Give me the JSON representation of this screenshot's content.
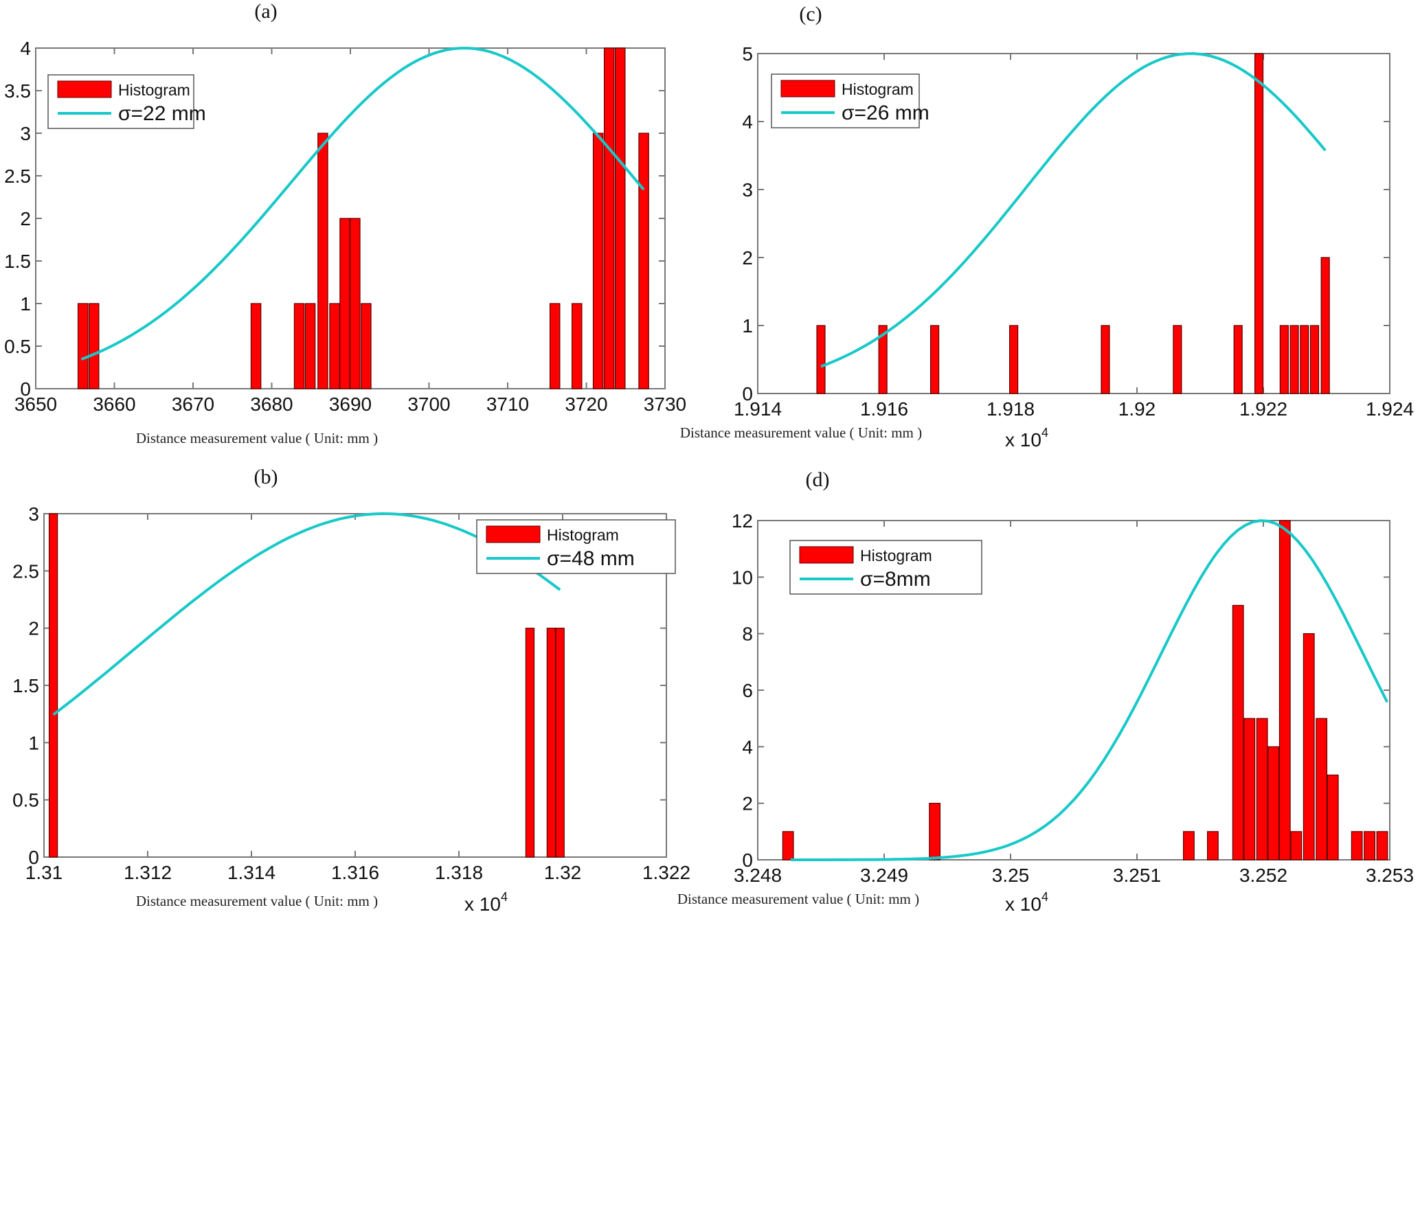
{
  "colors": {
    "bar": "#ff0000",
    "bar_edge": "#5a0000",
    "curve": "#19c8c8",
    "axis": "#777777",
    "text": "#111111"
  },
  "chart_data": [
    {
      "id": "a",
      "panel_label": "(a)",
      "type": "bar",
      "title": "",
      "xlabel": "Distance measurement value ( Unit: mm )",
      "ylabel": "",
      "x_exponent": "",
      "xlim": [
        3650,
        3730
      ],
      "ylim": [
        0,
        4
      ],
      "xticks": [
        3650,
        3660,
        3670,
        3680,
        3690,
        3700,
        3710,
        3720,
        3730
      ],
      "xtick_labels": [
        "3650",
        "3660",
        "3670",
        "3680",
        "3690",
        "3700",
        "3710",
        "3720",
        "3730"
      ],
      "yticks": [
        0,
        0.5,
        1,
        1.5,
        2,
        2.5,
        3,
        3.5,
        4
      ],
      "ytick_labels": [
        "0",
        "0.5",
        "1",
        "1.5",
        "2",
        "2.5",
        "3",
        "3.5",
        "4"
      ],
      "bin_width": 1.25,
      "bars": [
        {
          "x": 3656.0,
          "count": 1
        },
        {
          "x": 3657.4,
          "count": 1
        },
        {
          "x": 3678.0,
          "count": 1
        },
        {
          "x": 3683.5,
          "count": 1
        },
        {
          "x": 3684.9,
          "count": 1
        },
        {
          "x": 3686.5,
          "count": 3
        },
        {
          "x": 3688.0,
          "count": 1
        },
        {
          "x": 3689.3,
          "count": 2
        },
        {
          "x": 3690.6,
          "count": 2
        },
        {
          "x": 3692.0,
          "count": 1
        },
        {
          "x": 3716.0,
          "count": 1
        },
        {
          "x": 3718.8,
          "count": 1
        },
        {
          "x": 3721.5,
          "count": 3
        },
        {
          "x": 3722.9,
          "count": 4
        },
        {
          "x": 3724.3,
          "count": 4
        },
        {
          "x": 3727.3,
          "count": 3
        }
      ],
      "curve": {
        "mu": 3704.5,
        "sigma": 22,
        "peak": 4,
        "x_start": 3655.8,
        "x_end": 3727.3
      },
      "legend": {
        "position": "top-left",
        "entries": [
          "Histogram",
          "σ=22 mm"
        ]
      }
    },
    {
      "id": "c",
      "panel_label": "(c)",
      "type": "bar",
      "title": "",
      "xlabel": "Distance measurement value ( Unit: mm )",
      "ylabel": "",
      "x_exponent": "4",
      "xlim": [
        1.914,
        1.924
      ],
      "ylim": [
        0,
        5
      ],
      "xticks": [
        1.914,
        1.916,
        1.918,
        1.92,
        1.922,
        1.924
      ],
      "xtick_labels": [
        "1.914",
        "1.916",
        "1.918",
        "1.92",
        "1.922",
        "1.924"
      ],
      "yticks": [
        0,
        1,
        2,
        3,
        4,
        5
      ],
      "ytick_labels": [
        "0",
        "1",
        "2",
        "3",
        "4",
        "5"
      ],
      "bin_width": 0.00013,
      "bars": [
        {
          "x": 1.915,
          "count": 1
        },
        {
          "x": 1.91598,
          "count": 1
        },
        {
          "x": 1.9168,
          "count": 1
        },
        {
          "x": 1.91805,
          "count": 1
        },
        {
          "x": 1.9195,
          "count": 1
        },
        {
          "x": 1.92064,
          "count": 1
        },
        {
          "x": 1.9216,
          "count": 1
        },
        {
          "x": 1.92193,
          "count": 5
        },
        {
          "x": 1.92233,
          "count": 1
        },
        {
          "x": 1.92249,
          "count": 1
        },
        {
          "x": 1.92265,
          "count": 1
        },
        {
          "x": 1.92281,
          "count": 1
        },
        {
          "x": 1.92298,
          "count": 2
        }
      ],
      "curve": {
        "mu": 1.92085,
        "sigma": 0.0026,
        "peak": 5,
        "x_start": 1.915,
        "x_end": 1.92298
      },
      "legend": {
        "position": "top-left",
        "entries": [
          "Histogram",
          "σ=26 mm"
        ]
      }
    },
    {
      "id": "b",
      "panel_label": "(b)",
      "type": "bar",
      "title": "",
      "xlabel": "Distance measurement value ( Unit: mm )",
      "ylabel": "",
      "x_exponent": "4",
      "xlim": [
        1.31,
        1.322
      ],
      "ylim": [
        0,
        3
      ],
      "xticks": [
        1.31,
        1.312,
        1.314,
        1.316,
        1.318,
        1.32,
        1.322
      ],
      "xtick_labels": [
        "1.31",
        "1.312",
        "1.314",
        "1.316",
        "1.318",
        "1.32",
        "1.322"
      ],
      "yticks": [
        0,
        0.5,
        1,
        1.5,
        2,
        2.5,
        3
      ],
      "ytick_labels": [
        "0",
        "0.5",
        "1",
        "1.5",
        "2",
        "2.5",
        "3"
      ],
      "bin_width": 0.00016,
      "bars": [
        {
          "x": 1.31018,
          "count": 3
        },
        {
          "x": 1.31937,
          "count": 2
        },
        {
          "x": 1.31978,
          "count": 2
        },
        {
          "x": 1.31995,
          "count": 2
        }
      ],
      "curve": {
        "mu": 1.31655,
        "sigma": 0.0048,
        "peak": 3,
        "x_start": 1.31018,
        "x_end": 1.31995
      },
      "legend": {
        "position": "top-right",
        "entries": [
          "Histogram",
          "σ=48 mm"
        ]
      }
    },
    {
      "id": "d",
      "panel_label": "(d)",
      "type": "bar",
      "title": "",
      "xlabel": "Distance measurement value ( Unit: mm )",
      "ylabel": "",
      "x_exponent": "4",
      "xlim": [
        3.248,
        3.253
      ],
      "ylim": [
        0,
        12
      ],
      "xticks": [
        3.248,
        3.249,
        3.25,
        3.251,
        3.252,
        3.253
      ],
      "xtick_labels": [
        "3.248",
        "3.249",
        "3.25",
        "3.251",
        "3.252",
        "3.253"
      ],
      "yticks": [
        0,
        2,
        4,
        6,
        8,
        10,
        12
      ],
      "ytick_labels": [
        "0",
        "2",
        "4",
        "6",
        "8",
        "10",
        "12"
      ],
      "bin_width": 8.5e-05,
      "bars": [
        {
          "x": 3.24824,
          "count": 1
        },
        {
          "x": 3.2494,
          "count": 2
        },
        {
          "x": 3.25141,
          "count": 1
        },
        {
          "x": 3.2516,
          "count": 1
        },
        {
          "x": 3.2518,
          "count": 9
        },
        {
          "x": 3.25189,
          "count": 5
        },
        {
          "x": 3.25199,
          "count": 5
        },
        {
          "x": 3.25208,
          "count": 4
        },
        {
          "x": 3.25217,
          "count": 12
        },
        {
          "x": 3.25226,
          "count": 1
        },
        {
          "x": 3.25236,
          "count": 8
        },
        {
          "x": 3.25246,
          "count": 5
        },
        {
          "x": 3.25255,
          "count": 3
        },
        {
          "x": 3.25274,
          "count": 1
        },
        {
          "x": 3.25284,
          "count": 1
        },
        {
          "x": 3.25294,
          "count": 1
        }
      ],
      "curve": {
        "mu": 3.25199,
        "sigma": 0.0008,
        "peak": 12,
        "x_start": 3.24826,
        "x_end": 3.25298
      },
      "legend": {
        "position": "top-left",
        "entries": [
          "Histogram",
          "σ=8mm"
        ]
      }
    }
  ]
}
